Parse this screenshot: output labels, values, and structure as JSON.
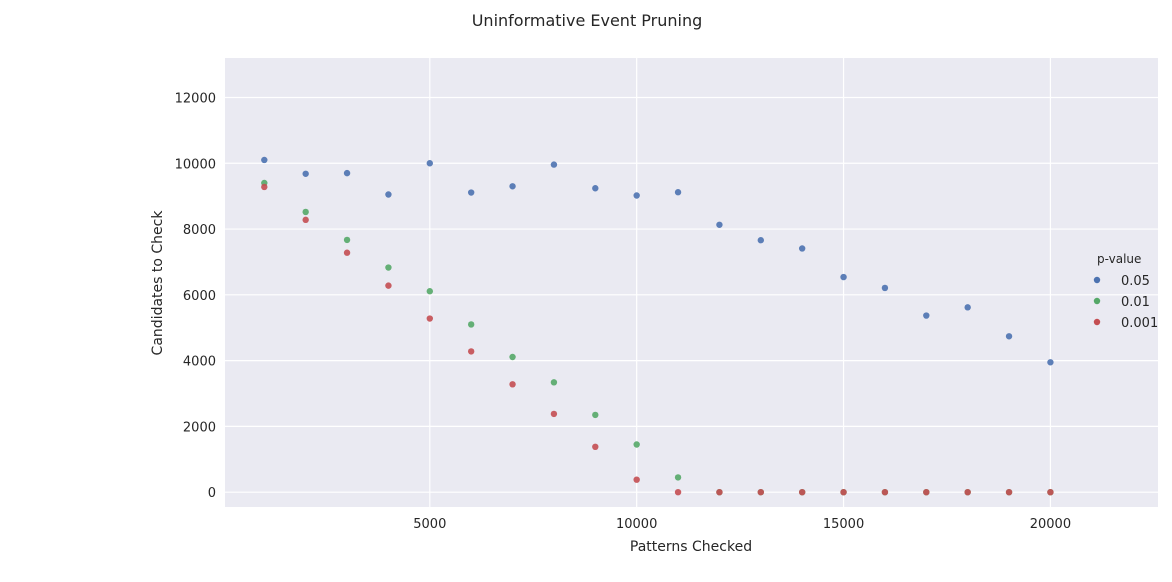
{
  "chart_data": {
    "type": "scatter",
    "title": "Uninformative Event Pruning",
    "xlabel": "Patterns Checked",
    "ylabel": "Candidates to Check",
    "xlim": [
      50,
      22600
    ],
    "ylim": [
      -450,
      13200
    ],
    "xticks": [
      5000,
      10000,
      15000,
      20000
    ],
    "yticks": [
      0,
      2000,
      4000,
      6000,
      8000,
      10000,
      12000
    ],
    "grid": true,
    "legend": {
      "title": "p-value",
      "placement": "right"
    },
    "series": [
      {
        "name": "0.05",
        "color": "#4C72B0",
        "x": [
          1000,
          2000,
          3000,
          4000,
          5000,
          6000,
          7000,
          8000,
          9000,
          10000,
          11000,
          12000,
          13000,
          14000,
          15000,
          16000,
          17000,
          18000,
          19000,
          20000
        ],
        "y": [
          10100,
          9680,
          9700,
          9050,
          10000,
          9110,
          9300,
          9960,
          9240,
          9020,
          9120,
          8130,
          7660,
          7410,
          6540,
          6210,
          5370,
          5620,
          4740,
          3950
        ]
      },
      {
        "name": "0.01",
        "color": "#55A868",
        "x": [
          1000,
          2000,
          3000,
          4000,
          5000,
          6000,
          7000,
          8000,
          9000,
          10000,
          11000,
          12000,
          13000,
          14000,
          15000,
          16000,
          17000,
          18000,
          19000,
          20000
        ],
        "y": [
          9400,
          8520,
          7670,
          6830,
          6110,
          5100,
          4110,
          3340,
          2350,
          1450,
          450,
          0,
          0,
          0,
          0,
          0,
          0,
          0,
          0,
          0
        ]
      },
      {
        "name": "0.001",
        "color": "#C44E52",
        "x": [
          1000,
          2000,
          3000,
          4000,
          5000,
          6000,
          7000,
          8000,
          9000,
          10000,
          11000,
          12000,
          13000,
          14000,
          15000,
          16000,
          17000,
          18000,
          19000,
          20000
        ],
        "y": [
          9280,
          8280,
          7280,
          6280,
          5280,
          4280,
          3280,
          2380,
          1380,
          380,
          0,
          0,
          0,
          0,
          0,
          0,
          0,
          0,
          0,
          0
        ]
      }
    ]
  }
}
